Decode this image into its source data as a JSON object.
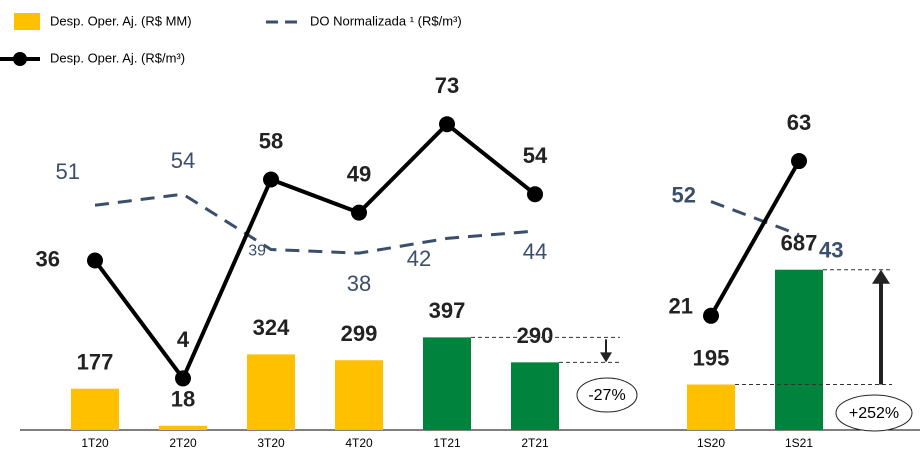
{
  "chart_data": {
    "type": "bar-line",
    "categories": [
      "1T20",
      "2T20",
      "3T20",
      "4T20",
      "1T21",
      "2T21",
      null,
      "1S20",
      "1S21"
    ],
    "ylim": [
      0,
      1500
    ],
    "y2lim": [
      -10,
      85
    ],
    "series": [
      {
        "name": "Desp. Oper. Aj. (R$ MM)",
        "type": "bar",
        "color": "#FFC000",
        "colors": [
          "#FFC000",
          "#FFC000",
          "#FFC000",
          "#FFC000",
          "#00843D",
          "#00843D",
          null,
          "#FFC000",
          "#00843D"
        ],
        "values": [
          177,
          18,
          324,
          299,
          397,
          290,
          null,
          195,
          687
        ]
      },
      {
        "name": "DO Normalizada ¹ (R$/m³)",
        "type": "line",
        "style": "dashed",
        "axis": "y2",
        "color": "#3B4E6B",
        "values": [
          51,
          54,
          39,
          38,
          42,
          44,
          null,
          52,
          43
        ]
      },
      {
        "name": "Desp. Oper. Aj. (R$/m³)",
        "type": "line",
        "axis": "y2",
        "color": "#000000",
        "values": [
          36,
          4,
          58,
          49,
          73,
          54,
          null,
          21,
          63
        ]
      }
    ],
    "annotations": [
      "-27%",
      "+252%"
    ]
  }
}
